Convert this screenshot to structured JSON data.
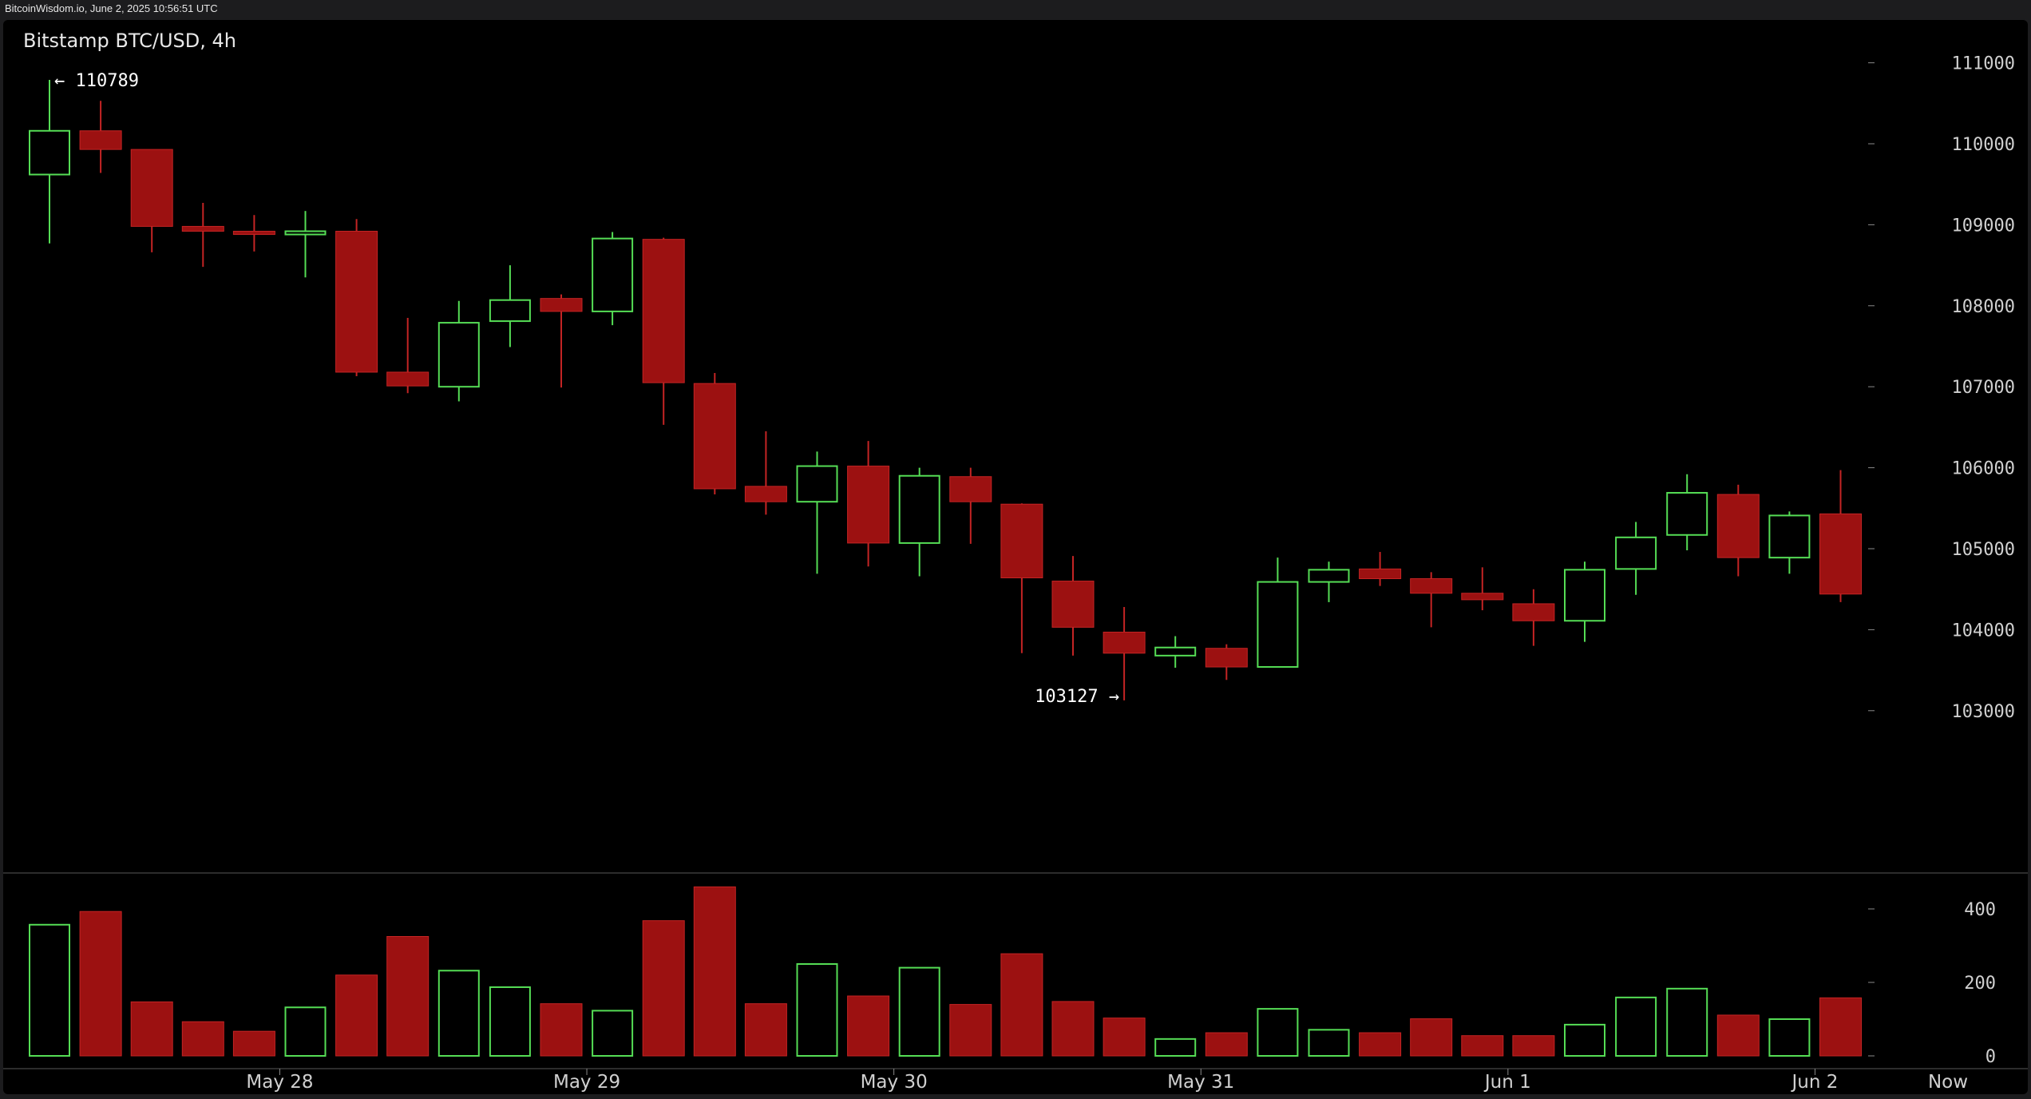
{
  "header": {
    "text": "BitcoinWisdom.io, June 2, 2025 10:56:51 UTC"
  },
  "colors": {
    "up": "#55dd55",
    "down": "#9c1111",
    "down_stroke": "#c42424",
    "text": "#d0d0d0",
    "separator": "#3a3a3a"
  },
  "chart_data": {
    "type": "candlestick",
    "title": "Bitstamp BTC/USD, 4h",
    "x_labels": [
      {
        "label": "May 28",
        "index": 4.5
      },
      {
        "label": "May 29",
        "index": 10.5
      },
      {
        "label": "May 30",
        "index": 16.5
      },
      {
        "label": "May 31",
        "index": 22.5
      },
      {
        "label": "Jun 1",
        "index": 28.5
      },
      {
        "label": "Jun 2",
        "index": 34.5
      }
    ],
    "now_label": "Now",
    "price_axis": {
      "ticks": [
        103000,
        104000,
        105000,
        106000,
        107000,
        108000,
        109000,
        110000,
        111000
      ]
    },
    "volume_axis": {
      "ticks": [
        0,
        200,
        400
      ]
    },
    "annotations": [
      {
        "label": "← 110789",
        "value": 110789,
        "index": 0,
        "side": "right"
      },
      {
        "label": "103127 →",
        "value": 103127,
        "index": 21,
        "side": "left"
      }
    ],
    "candles": [
      {
        "o": 109620,
        "h": 110789,
        "l": 108770,
        "c": 110160,
        "v": 357
      },
      {
        "o": 110160,
        "h": 110530,
        "l": 109640,
        "c": 109930,
        "v": 393
      },
      {
        "o": 109930,
        "h": 109930,
        "l": 108660,
        "c": 108980,
        "v": 147
      },
      {
        "o": 108980,
        "h": 109270,
        "l": 108480,
        "c": 108920,
        "v": 93
      },
      {
        "o": 108920,
        "h": 109120,
        "l": 108670,
        "c": 108880,
        "v": 67
      },
      {
        "o": 108880,
        "h": 109170,
        "l": 108350,
        "c": 108920,
        "v": 132
      },
      {
        "o": 108920,
        "h": 109070,
        "l": 107130,
        "c": 107180,
        "v": 220
      },
      {
        "o": 107180,
        "h": 107850,
        "l": 106920,
        "c": 107010,
        "v": 325
      },
      {
        "o": 107000,
        "h": 108060,
        "l": 106820,
        "c": 107790,
        "v": 232
      },
      {
        "o": 107810,
        "h": 108500,
        "l": 107490,
        "c": 108070,
        "v": 187
      },
      {
        "o": 108090,
        "h": 108140,
        "l": 106990,
        "c": 107930,
        "v": 142
      },
      {
        "o": 107930,
        "h": 108910,
        "l": 107760,
        "c": 108830,
        "v": 123
      },
      {
        "o": 108820,
        "h": 108840,
        "l": 106530,
        "c": 107050,
        "v": 368
      },
      {
        "o": 107040,
        "h": 107170,
        "l": 105670,
        "c": 105740,
        "v": 460
      },
      {
        "o": 105770,
        "h": 106450,
        "l": 105420,
        "c": 105580,
        "v": 142
      },
      {
        "o": 105580,
        "h": 106200,
        "l": 104690,
        "c": 106020,
        "v": 250
      },
      {
        "o": 106020,
        "h": 106330,
        "l": 104780,
        "c": 105070,
        "v": 163
      },
      {
        "o": 105070,
        "h": 106000,
        "l": 104660,
        "c": 105900,
        "v": 240
      },
      {
        "o": 105890,
        "h": 106000,
        "l": 105060,
        "c": 105580,
        "v": 140
      },
      {
        "o": 105550,
        "h": 105560,
        "l": 103710,
        "c": 104640,
        "v": 278
      },
      {
        "o": 104600,
        "h": 104910,
        "l": 103680,
        "c": 104030,
        "v": 148
      },
      {
        "o": 103970,
        "h": 104280,
        "l": 103127,
        "c": 103710,
        "v": 103
      },
      {
        "o": 103680,
        "h": 103920,
        "l": 103530,
        "c": 103780,
        "v": 46
      },
      {
        "o": 103770,
        "h": 103820,
        "l": 103380,
        "c": 103540,
        "v": 63
      },
      {
        "o": 103540,
        "h": 104890,
        "l": 103540,
        "c": 104590,
        "v": 128
      },
      {
        "o": 104590,
        "h": 104840,
        "l": 104340,
        "c": 104740,
        "v": 71
      },
      {
        "o": 104750,
        "h": 104960,
        "l": 104540,
        "c": 104630,
        "v": 63
      },
      {
        "o": 104630,
        "h": 104710,
        "l": 104030,
        "c": 104450,
        "v": 101
      },
      {
        "o": 104450,
        "h": 104770,
        "l": 104240,
        "c": 104370,
        "v": 55
      },
      {
        "o": 104320,
        "h": 104500,
        "l": 103800,
        "c": 104110,
        "v": 55
      },
      {
        "o": 104110,
        "h": 104840,
        "l": 103850,
        "c": 104740,
        "v": 85
      },
      {
        "o": 104750,
        "h": 105330,
        "l": 104430,
        "c": 105140,
        "v": 159
      },
      {
        "o": 105170,
        "h": 105920,
        "l": 104980,
        "c": 105690,
        "v": 183
      },
      {
        "o": 105670,
        "h": 105790,
        "l": 104660,
        "c": 104890,
        "v": 111
      },
      {
        "o": 104890,
        "h": 105460,
        "l": 104690,
        "c": 105410,
        "v": 100
      },
      {
        "o": 105430,
        "h": 105970,
        "l": 104340,
        "c": 104440,
        "v": 158
      }
    ]
  }
}
